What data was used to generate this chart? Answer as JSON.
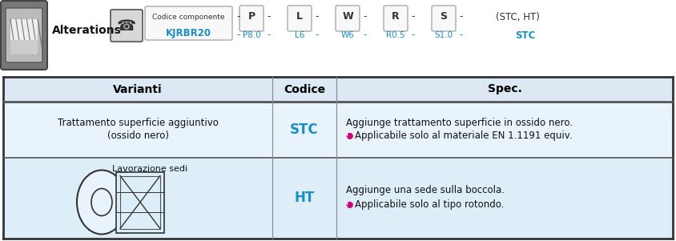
{
  "bg_color": "#ffffff",
  "header_bg": "#dce9f5",
  "row1_bg": "#e8f3fb",
  "row2_bg": "#ddeef9",
  "table_border_color": "#444444",
  "header_text_color": "#000000",
  "blue_text_color": "#1a8fc1",
  "black_text_color": "#111111",
  "pink_icon_color": "#cc007a",
  "varianti_header": "Varianti",
  "codice_header": "Codice",
  "spec_header": "Spec.",
  "row1_varianti_line1": "Trattamento superficie aggiuntivo",
  "row1_varianti_line2": "(ossido nero)",
  "row1_codice": "STC",
  "row1_spec_line1": "Aggiunge trattamento superficie in ossido nero.",
  "row1_spec_line2": "Applicabile solo al materiale EN 1.1191 equiv.",
  "row2_varianti_title": "Lavorazione sedi",
  "row2_codice": "HT",
  "row2_spec_line1": "Aggiunge una sede sulla boccola.",
  "row2_spec_line2": "Applicabile solo al tipo rotondo.",
  "alterations_text": "Alterations",
  "top_code_label": "Codice componente",
  "top_code_example": "KJRBR20",
  "top_sequence": [
    "P",
    "L",
    "W",
    "R",
    "S"
  ],
  "top_values": [
    "P8.0",
    "L6",
    "W6",
    "R0.5",
    "S1.0"
  ],
  "top_dash_values": [
    "-",
    "-",
    "-",
    "-",
    "-",
    "-"
  ],
  "top_suffix": "(STC, HT)",
  "top_suffix_value": "STC"
}
